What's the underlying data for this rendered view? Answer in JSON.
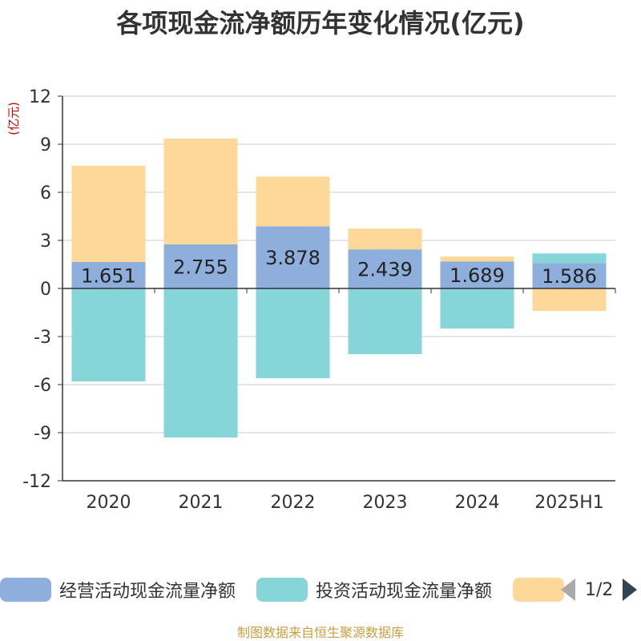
{
  "title": "各项现金流净额历年变化情况(亿元)",
  "footer": "制图数据来自恒生聚源数据库",
  "legend": {
    "items": [
      {
        "label": "经营活动现金流量净额",
        "color": "#8eaedb"
      },
      {
        "label": "投资活动现金流量净额",
        "color": "#86d5d8"
      },
      {
        "label": "",
        "color": "#fdd899"
      }
    ],
    "page": "1/2"
  },
  "chart_data": {
    "type": "bar",
    "stacked": true,
    "categories": [
      "2020",
      "2021",
      "2022",
      "2023",
      "2024",
      "2025H1"
    ],
    "ylabel": "(亿元)",
    "ylim": [
      -12,
      12
    ],
    "yticks": [
      12,
      9,
      6,
      3,
      0,
      -3,
      -6,
      -9,
      -12
    ],
    "grid": true,
    "legend_position": "bottom",
    "series": [
      {
        "name": "经营活动现金流量净额",
        "color": "#8eaedb",
        "values": [
          1.651,
          2.755,
          3.878,
          2.439,
          1.689,
          1.586
        ],
        "show_labels": true
      },
      {
        "name": "投资活动现金流量净额",
        "color": "#86d5d8",
        "values": [
          -5.8,
          -9.3,
          -5.6,
          -4.1,
          -2.5,
          0.6
        ],
        "show_labels": false
      },
      {
        "color": "#fdd899",
        "values": [
          6.0,
          6.6,
          3.1,
          1.3,
          0.3,
          -1.4
        ],
        "show_labels": false
      }
    ]
  }
}
